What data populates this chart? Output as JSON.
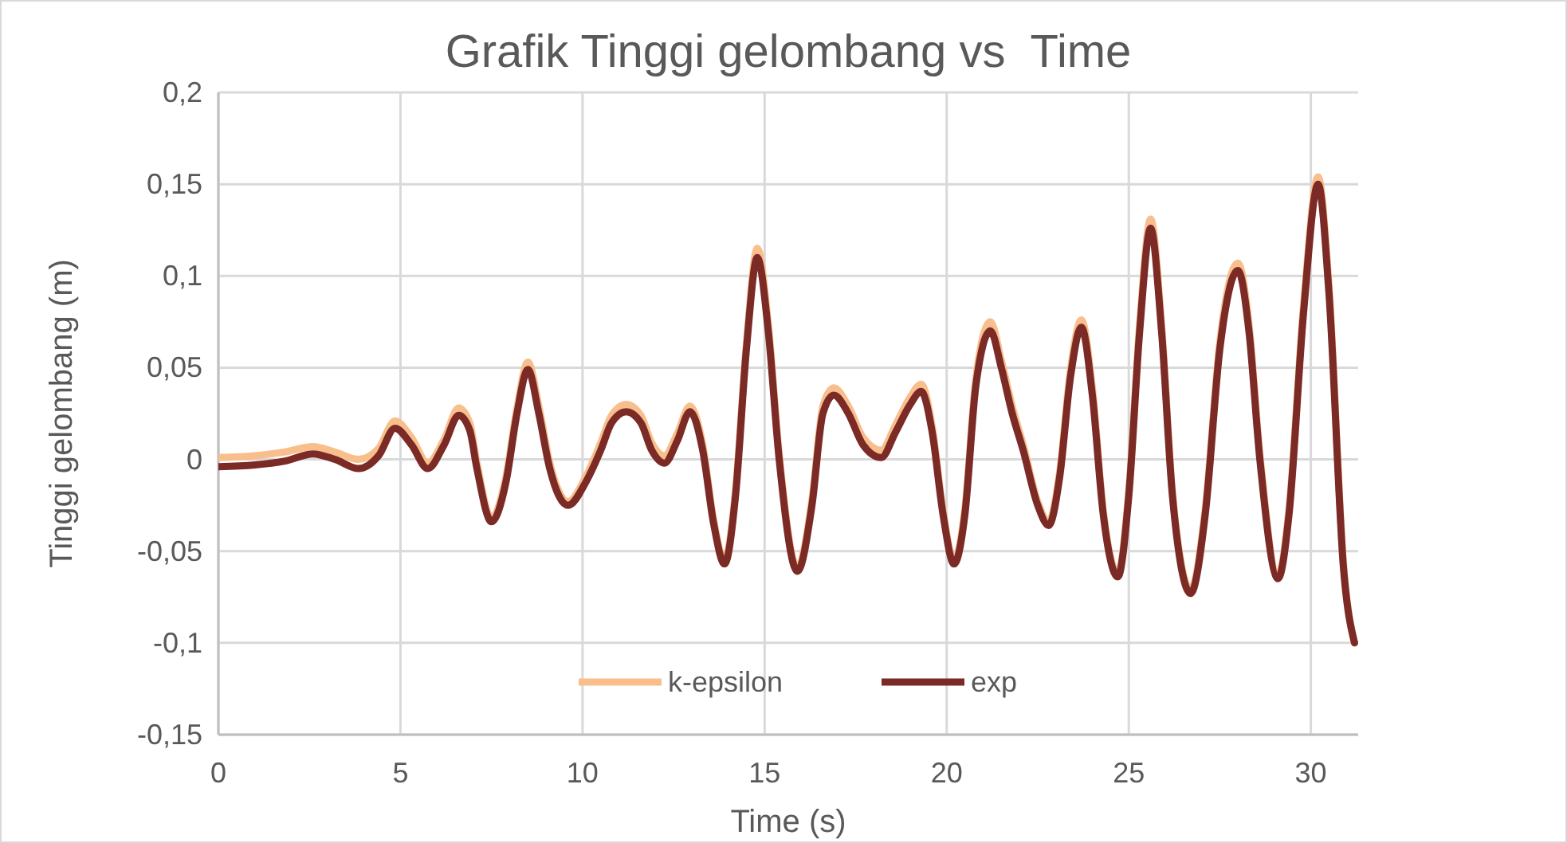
{
  "chart_data": {
    "type": "line",
    "title": "Grafik Tinggi gelombang vs  Time",
    "xlabel": "Time (s)",
    "ylabel": "Tinggi gelombang (m)",
    "xlim": [
      0,
      31.3
    ],
    "xticks": [
      0,
      5,
      10,
      15,
      20,
      25,
      30
    ],
    "ylim": [
      -0.15,
      0.2
    ],
    "yticks": [
      {
        "value": -0.15,
        "label": "-0,15"
      },
      {
        "value": -0.1,
        "label": "-0,1"
      },
      {
        "value": -0.05,
        "label": "-0,05"
      },
      0,
      {
        "value": 0.05,
        "label": "0,05"
      },
      {
        "value": 0.1,
        "label": "0,1"
      },
      {
        "value": 0.15,
        "label": "0,15"
      },
      {
        "value": 0.2,
        "label": "0,2"
      }
    ],
    "grid": true,
    "legend": "bottom",
    "line_style": "solid",
    "marker": "none",
    "series": [
      {
        "name": "k-epsilon",
        "color": "#f8bf8c",
        "x": [
          0,
          1,
          1.8,
          2.6,
          3.2,
          3.85,
          4.4,
          4.85,
          5.3,
          5.75,
          6.2,
          6.6,
          6.9,
          7.1,
          7.5,
          7.9,
          8.2,
          8.5,
          8.8,
          9.1,
          9.6,
          10.1,
          10.5,
          10.8,
          11.2,
          11.6,
          11.9,
          12.25,
          12.6,
          12.95,
          13.3,
          13.6,
          13.9,
          14.2,
          14.5,
          14.8,
          15.1,
          15.4,
          15.9,
          16.3,
          16.6,
          16.9,
          17.3,
          17.7,
          18.2,
          18.6,
          19.0,
          19.3,
          19.6,
          19.9,
          20.2,
          20.5,
          20.8,
          21.2,
          21.5,
          21.8,
          22.1,
          22.5,
          22.8,
          23.1,
          23.4,
          23.7,
          24.0,
          24.3,
          24.7,
          25.0,
          25.3,
          25.6,
          25.9,
          26.2,
          26.7,
          27.1,
          27.5,
          28.0,
          28.3,
          28.6,
          29.1,
          29.4,
          29.8,
          30.2,
          30.5,
          30.9,
          31.2
        ],
        "values": [
          0.001,
          0.002,
          0.004,
          0.007,
          0.004,
          0.0,
          0.006,
          0.021,
          0.012,
          -0.002,
          0.011,
          0.028,
          0.02,
          -0.002,
          -0.032,
          -0.009,
          0.028,
          0.053,
          0.029,
          -0.002,
          -0.023,
          -0.009,
          0.009,
          0.024,
          0.03,
          0.024,
          0.009,
          0.002,
          0.014,
          0.029,
          0.008,
          -0.033,
          -0.055,
          -0.017,
          0.063,
          0.115,
          0.074,
          0.003,
          -0.059,
          -0.022,
          0.029,
          0.039,
          0.029,
          0.012,
          0.005,
          0.019,
          0.034,
          0.041,
          0.018,
          -0.028,
          -0.055,
          -0.027,
          0.044,
          0.075,
          0.054,
          0.029,
          0.008,
          -0.023,
          -0.034,
          -0.007,
          0.049,
          0.076,
          0.039,
          -0.028,
          -0.062,
          -0.017,
          0.074,
          0.131,
          0.074,
          -0.018,
          -0.071,
          -0.027,
          0.064,
          0.107,
          0.074,
          0.003,
          -0.063,
          -0.027,
          0.084,
          0.154,
          0.094,
          -0.058,
          -0.1
        ]
      },
      {
        "name": "exp",
        "color": "#7b2a26",
        "x": [
          0,
          1,
          1.8,
          2.6,
          3.2,
          3.85,
          4.4,
          4.85,
          5.3,
          5.75,
          6.2,
          6.6,
          6.9,
          7.1,
          7.5,
          7.9,
          8.2,
          8.5,
          8.8,
          9.1,
          9.6,
          10.1,
          10.5,
          10.8,
          11.2,
          11.6,
          11.9,
          12.25,
          12.6,
          12.95,
          13.3,
          13.6,
          13.9,
          14.2,
          14.5,
          14.8,
          15.1,
          15.4,
          15.9,
          16.3,
          16.6,
          16.9,
          17.3,
          17.7,
          18.2,
          18.6,
          19.0,
          19.3,
          19.6,
          19.9,
          20.2,
          20.5,
          20.8,
          21.2,
          21.5,
          21.8,
          22.1,
          22.5,
          22.8,
          23.1,
          23.4,
          23.7,
          24.0,
          24.3,
          24.7,
          25.0,
          25.3,
          25.6,
          25.9,
          26.2,
          26.7,
          27.1,
          27.5,
          28.0,
          28.3,
          28.6,
          29.1,
          29.4,
          29.8,
          30.2,
          30.5,
          30.9,
          31.2
        ],
        "values": [
          -0.004,
          -0.003,
          -0.001,
          0.003,
          0.0,
          -0.005,
          0.002,
          0.017,
          0.008,
          -0.005,
          0.008,
          0.024,
          0.016,
          -0.005,
          -0.034,
          -0.012,
          0.025,
          0.049,
          0.025,
          -0.005,
          -0.025,
          -0.012,
          0.005,
          0.02,
          0.026,
          0.02,
          0.005,
          -0.002,
          0.01,
          0.026,
          0.005,
          -0.035,
          -0.057,
          -0.02,
          0.06,
          0.11,
          0.07,
          0.0,
          -0.061,
          -0.025,
          0.025,
          0.035,
          0.025,
          0.008,
          0.001,
          0.015,
          0.03,
          0.037,
          0.015,
          -0.03,
          -0.057,
          -0.03,
          0.04,
          0.07,
          0.05,
          0.025,
          0.005,
          -0.025,
          -0.036,
          -0.01,
          0.045,
          0.072,
          0.035,
          -0.03,
          -0.064,
          -0.02,
          0.07,
          0.126,
          0.07,
          -0.02,
          -0.073,
          -0.03,
          0.06,
          0.103,
          0.07,
          0.0,
          -0.065,
          -0.03,
          0.08,
          0.15,
          0.09,
          -0.06,
          -0.1
        ]
      }
    ]
  }
}
